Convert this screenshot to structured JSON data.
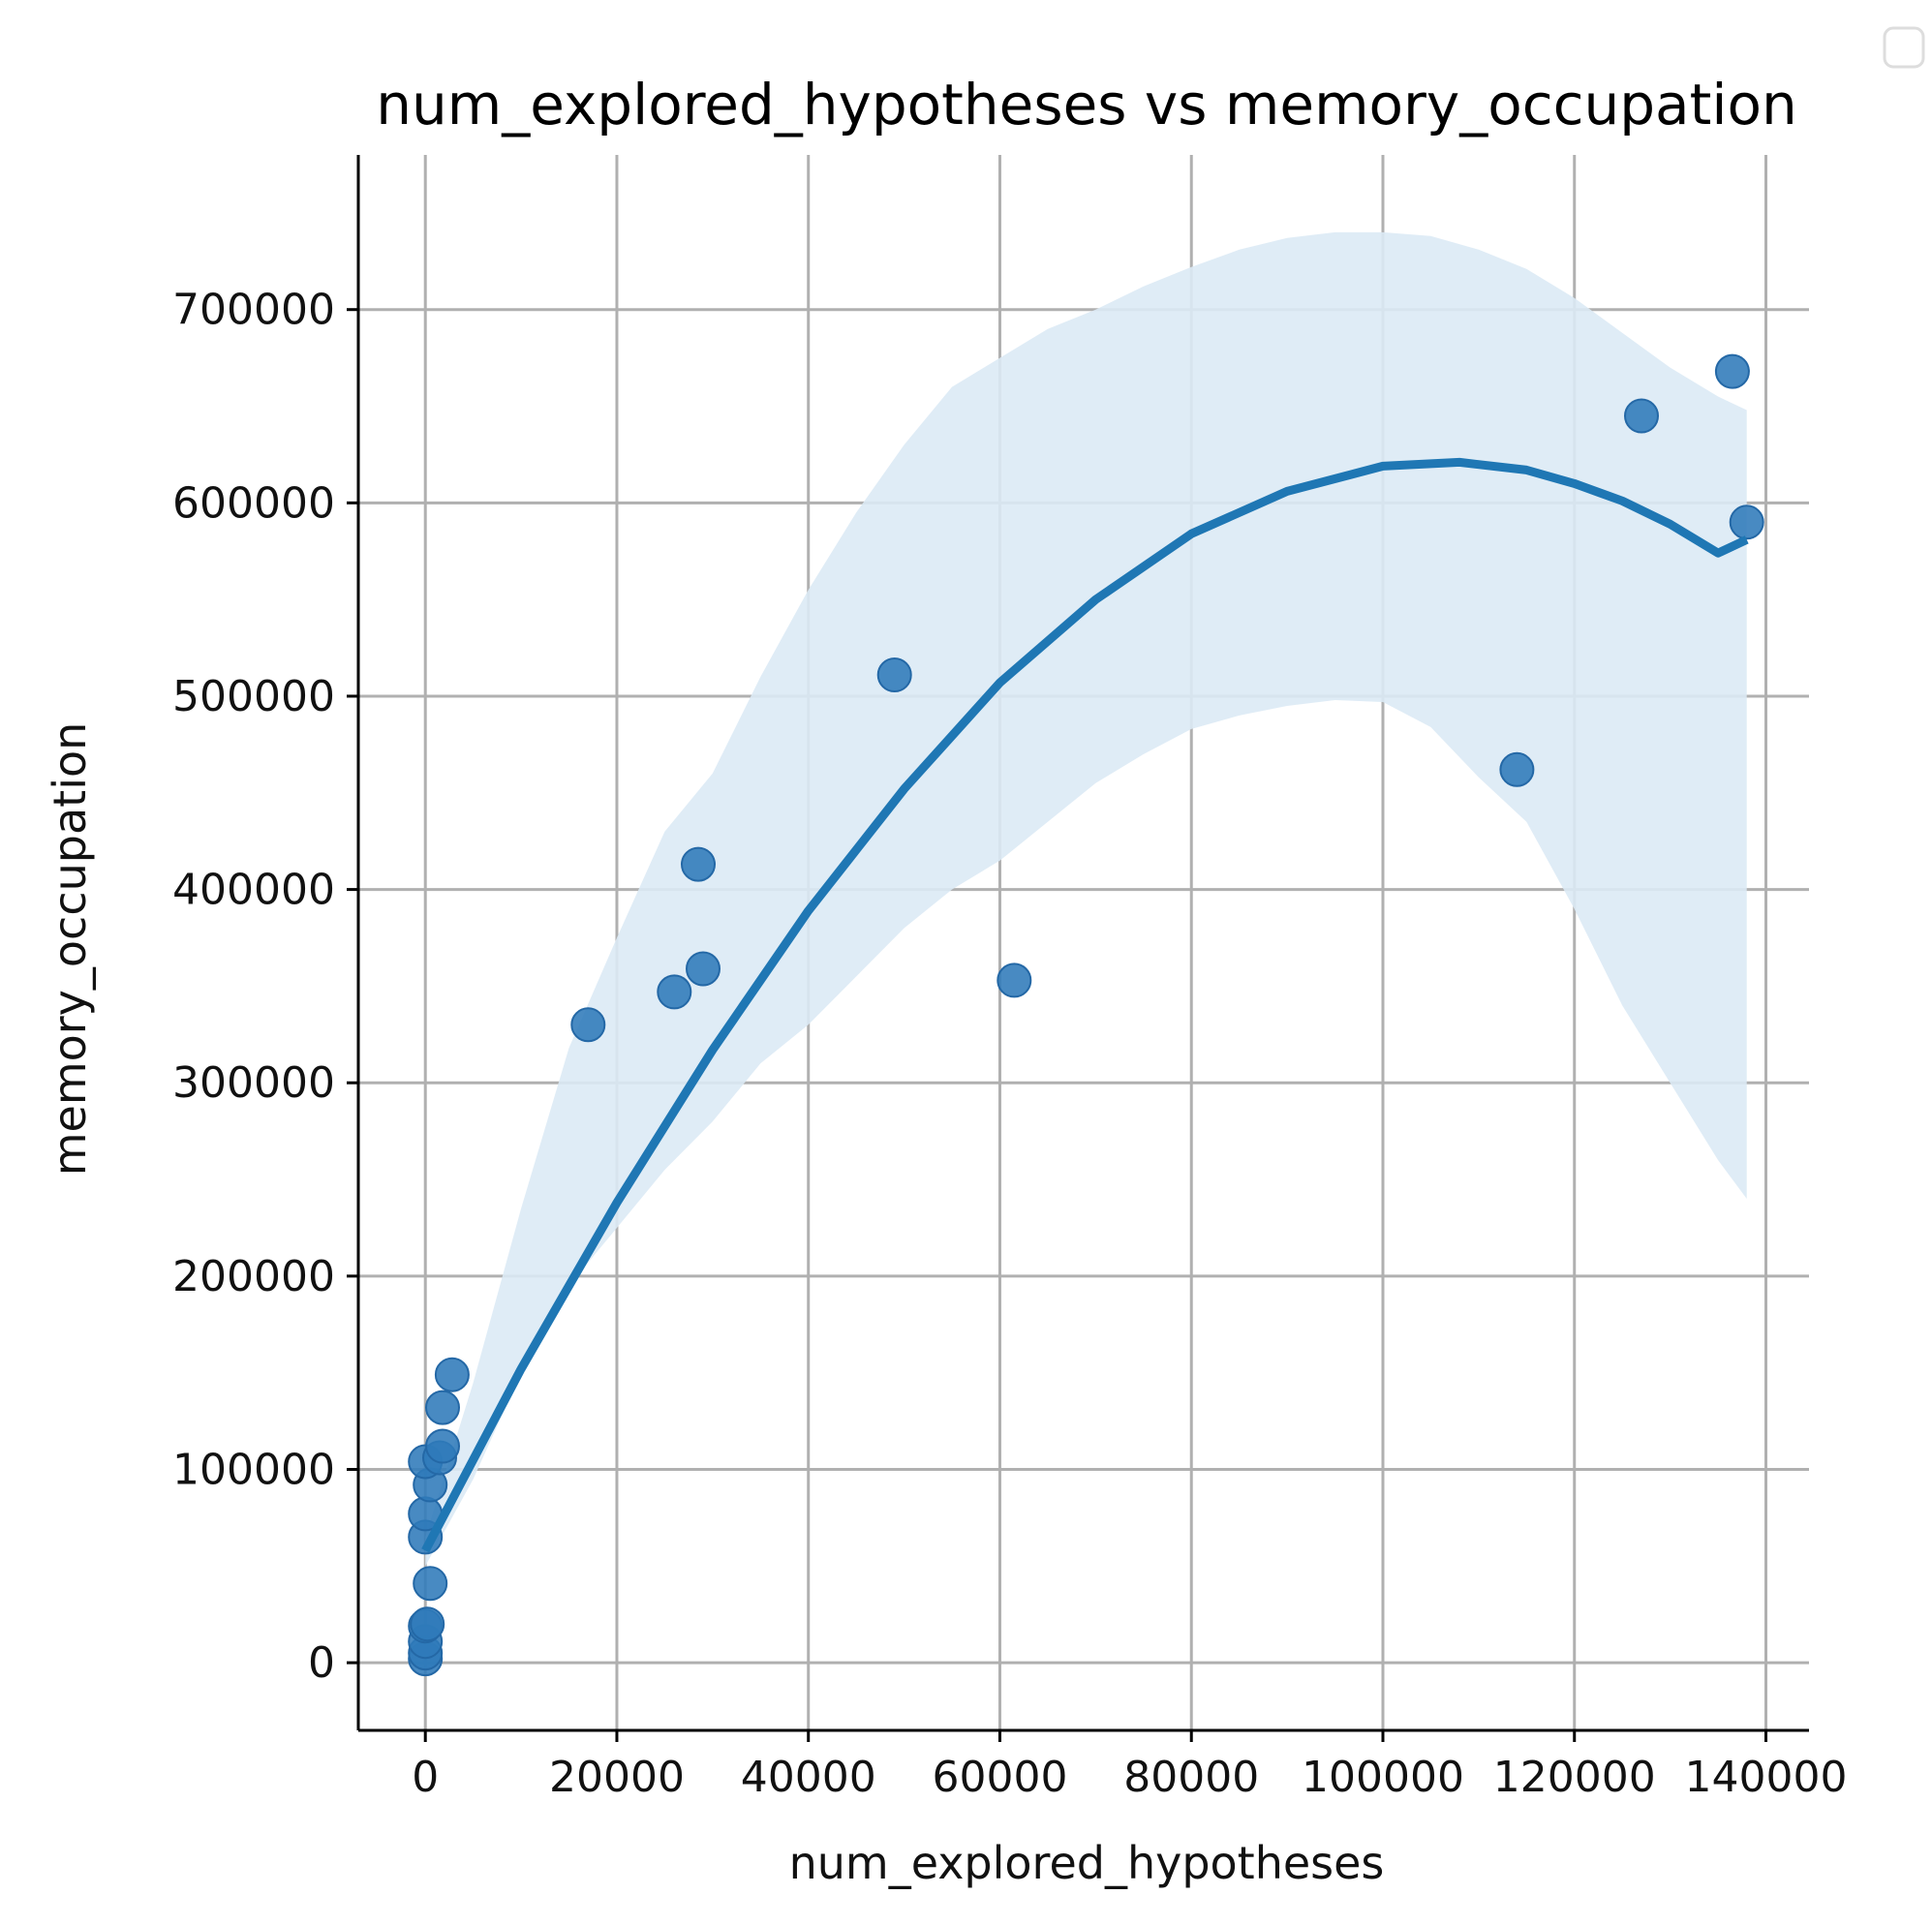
{
  "chart_data": {
    "type": "scatter",
    "title": "num_explored_hypotheses vs memory_occupation",
    "xlabel": "num_explored_hypotheses",
    "ylabel": "memory_occupation",
    "xlim": [
      -7000,
      144500
    ],
    "ylim": [
      -35000,
      780000
    ],
    "xticks": [
      0,
      20000,
      40000,
      60000,
      80000,
      100000,
      120000,
      140000
    ],
    "yticks": [
      0,
      100000,
      200000,
      300000,
      400000,
      500000,
      600000,
      700000
    ],
    "grid": true,
    "legend": "top-right (empty)",
    "colors": {
      "points": "#2f7ab9",
      "line": "#1f77b4",
      "band": "#dceaf5"
    },
    "points": [
      [
        0,
        2000
      ],
      [
        0,
        5000
      ],
      [
        0,
        11000
      ],
      [
        0,
        19000
      ],
      [
        200,
        20000
      ],
      [
        500,
        41000
      ],
      [
        0,
        65000
      ],
      [
        0,
        77000
      ],
      [
        500,
        92000
      ],
      [
        0,
        104000
      ],
      [
        1500,
        106000
      ],
      [
        1800,
        112000
      ],
      [
        1800,
        132000
      ],
      [
        2800,
        149000
      ],
      [
        17000,
        330000
      ],
      [
        26000,
        347000
      ],
      [
        29000,
        359000
      ],
      [
        28500,
        413000
      ],
      [
        49000,
        511000
      ],
      [
        61500,
        353000
      ],
      [
        114000,
        462000
      ],
      [
        127000,
        645000
      ],
      [
        136500,
        668000
      ],
      [
        138000,
        590000
      ]
    ],
    "fit": {
      "x": [
        0,
        10000,
        20000,
        30000,
        40000,
        50000,
        60000,
        70000,
        80000,
        90000,
        100000,
        108000,
        115000,
        120000,
        125000,
        130000,
        135000,
        138000
      ],
      "y": [
        58000,
        152000,
        238000,
        317000,
        389000,
        452000,
        507000,
        550000,
        584000,
        606000,
        619000,
        621000,
        617000,
        610000,
        601000,
        589000,
        574000,
        581000
      ]
    },
    "band": {
      "x": [
        0,
        5000,
        10000,
        15000,
        20000,
        25000,
        30000,
        35000,
        40000,
        45000,
        50000,
        55000,
        60000,
        65000,
        70000,
        75000,
        80000,
        85000,
        90000,
        95000,
        100000,
        105000,
        110000,
        115000,
        120000,
        125000,
        130000,
        135000,
        138000
      ],
      "upper": [
        65000,
        145000,
        235000,
        318000,
        375000,
        430000,
        460000,
        510000,
        555000,
        595000,
        630000,
        660000,
        675000,
        690000,
        700000,
        712000,
        722000,
        731000,
        737000,
        740000,
        740000,
        738000,
        731000,
        721000,
        706000,
        688000,
        670000,
        655000,
        648000
      ],
      "lower": [
        50000,
        95000,
        150000,
        195000,
        225000,
        255000,
        280000,
        310000,
        330000,
        355000,
        380000,
        400000,
        415000,
        435000,
        455000,
        470000,
        483000,
        490000,
        495000,
        498000,
        497000,
        484000,
        458000,
        435000,
        390000,
        340000,
        300000,
        260000,
        240000
      ]
    }
  }
}
